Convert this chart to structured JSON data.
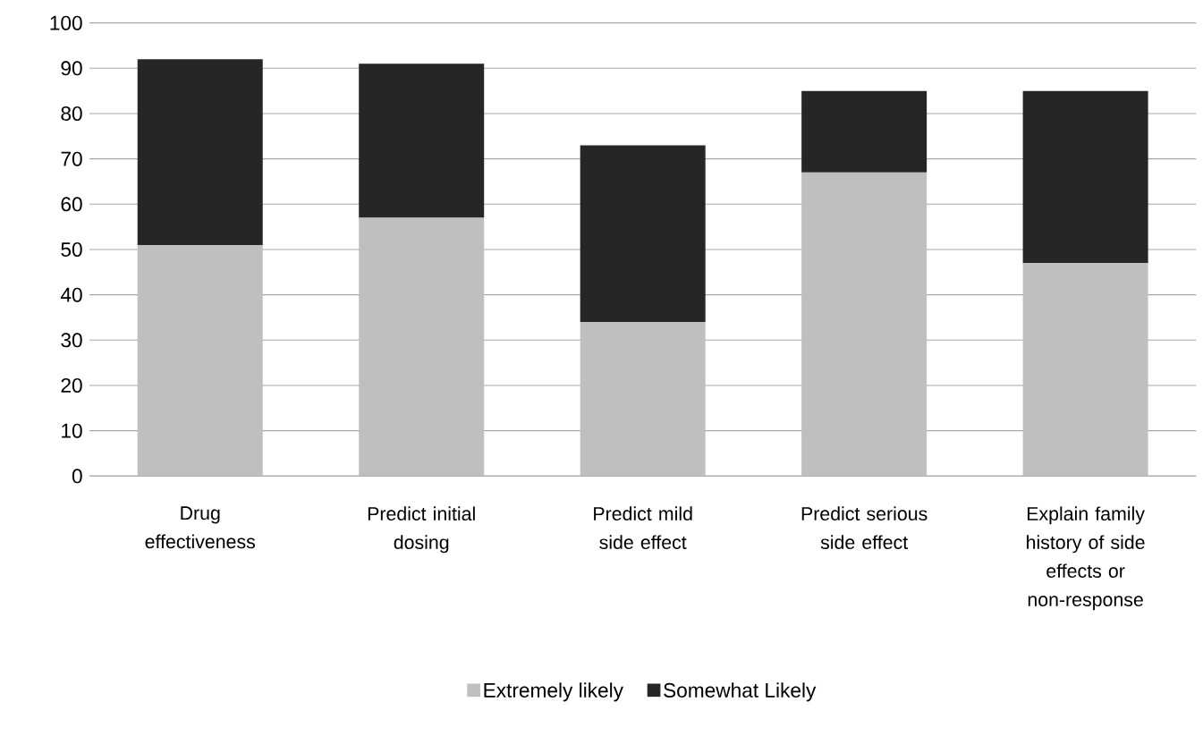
{
  "chart_data": {
    "type": "bar",
    "stacked": true,
    "categories": [
      "Drug effectiveness",
      "Predict initial dosing",
      "Predict mild side effect",
      "Predict serious side effect",
      "Explain family history of side effects or non-response"
    ],
    "series": [
      {
        "name": "Extremely likely",
        "color": "#bfbfbf",
        "values": [
          51,
          57,
          34,
          67,
          47
        ]
      },
      {
        "name": "Somewhat Likely",
        "color": "#262626",
        "values": [
          41,
          34,
          39,
          18,
          38
        ]
      }
    ],
    "ylim": [
      0,
      100
    ],
    "yticks": [
      0,
      10,
      20,
      30,
      40,
      50,
      60,
      70,
      80,
      90,
      100
    ],
    "grid": "y",
    "legend": "bottom"
  }
}
